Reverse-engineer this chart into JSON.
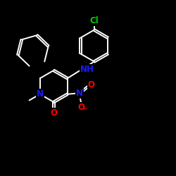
{
  "bg": "#000000",
  "white": [
    1.0,
    1.0,
    1.0
  ],
  "blue": [
    0.1,
    0.1,
    1.0
  ],
  "red": [
    1.0,
    0.0,
    0.0
  ],
  "green": [
    0.0,
    0.8,
    0.0
  ],
  "lw": 1.4,
  "fs": 8.5,
  "figsize": [
    2.5,
    2.5
  ],
  "dpi": 100
}
